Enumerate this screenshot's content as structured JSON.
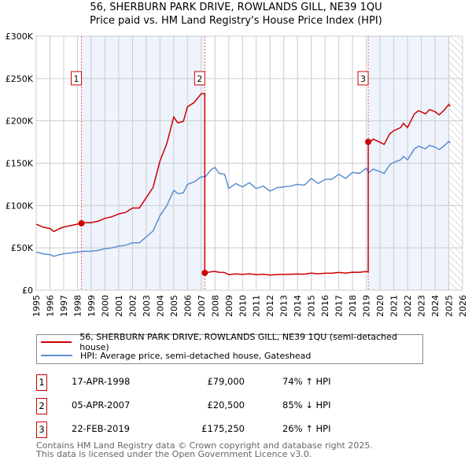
{
  "chart_data": {
    "type": "line",
    "title": "56, SHERBURN PARK DRIVE, ROWLANDS GILL, NE39 1QU",
    "subtitle": "Price paid vs. HM Land Registry's House Price Index (HPI)",
    "xlim": [
      1995,
      2026
    ],
    "ylim": [
      0,
      300000
    ],
    "x_ticks": [
      "1995",
      "1996",
      "1997",
      "1998",
      "1999",
      "2000",
      "2001",
      "2002",
      "2003",
      "2004",
      "2005",
      "2006",
      "2007",
      "2008",
      "2009",
      "2010",
      "2011",
      "2012",
      "2013",
      "2014",
      "2015",
      "2016",
      "2017",
      "2018",
      "2019",
      "2020",
      "2021",
      "2022",
      "2023",
      "2024",
      "2025",
      "2026"
    ],
    "y_ticks": [
      {
        "v": 0,
        "label": "£0"
      },
      {
        "v": 50000,
        "label": "£50K"
      },
      {
        "v": 100000,
        "label": "£100K"
      },
      {
        "v": 150000,
        "label": "£150K"
      },
      {
        "v": 200000,
        "label": "£200K"
      },
      {
        "v": 250000,
        "label": "£250K"
      },
      {
        "v": 300000,
        "label": "£300K"
      }
    ],
    "grid": true,
    "hpi_series": {
      "name": "HPI: Average price, semi-detached house, Gateshead",
      "color": "#5b8fd0",
      "points": [
        [
          1995.0,
          45000
        ],
        [
          1995.5,
          43000
        ],
        [
          1996.0,
          42000
        ],
        [
          1996.3,
          40000
        ],
        [
          1996.7,
          42000
        ],
        [
          1997.0,
          43000
        ],
        [
          1997.5,
          44000
        ],
        [
          1998.0,
          45000
        ],
        [
          1998.5,
          46000
        ],
        [
          1999.0,
          46000
        ],
        [
          1999.5,
          47000
        ],
        [
          2000.0,
          49000
        ],
        [
          2000.5,
          50000
        ],
        [
          2001.0,
          52000
        ],
        [
          2001.5,
          53000
        ],
        [
          2002.0,
          56000
        ],
        [
          2002.5,
          56000
        ],
        [
          2003.0,
          63000
        ],
        [
          2003.5,
          70000
        ],
        [
          2004.0,
          88000
        ],
        [
          2004.5,
          100000
        ],
        [
          2005.0,
          118000
        ],
        [
          2005.3,
          114000
        ],
        [
          2005.7,
          115000
        ],
        [
          2006.0,
          125000
        ],
        [
          2006.5,
          128000
        ],
        [
          2007.0,
          134000
        ],
        [
          2007.3,
          134000
        ],
        [
          2007.7,
          142000
        ],
        [
          2008.0,
          145000
        ],
        [
          2008.3,
          138000
        ],
        [
          2008.7,
          137000
        ],
        [
          2009.0,
          120000
        ],
        [
          2009.5,
          126000
        ],
        [
          2010.0,
          122000
        ],
        [
          2010.5,
          127000
        ],
        [
          2011.0,
          120000
        ],
        [
          2011.5,
          123000
        ],
        [
          2012.0,
          117000
        ],
        [
          2012.5,
          121000
        ],
        [
          2013.0,
          122000
        ],
        [
          2013.5,
          123000
        ],
        [
          2014.0,
          125000
        ],
        [
          2014.5,
          124000
        ],
        [
          2015.0,
          132000
        ],
        [
          2015.5,
          126000
        ],
        [
          2016.0,
          131000
        ],
        [
          2016.5,
          131000
        ],
        [
          2017.0,
          137000
        ],
        [
          2017.5,
          132000
        ],
        [
          2018.0,
          139000
        ],
        [
          2018.5,
          138000
        ],
        [
          2019.0,
          144000
        ],
        [
          2019.2,
          139000
        ],
        [
          2019.5,
          143000
        ],
        [
          2020.0,
          140000
        ],
        [
          2020.3,
          138000
        ],
        [
          2020.7,
          148000
        ],
        [
          2021.0,
          151000
        ],
        [
          2021.5,
          154000
        ],
        [
          2021.7,
          158000
        ],
        [
          2022.0,
          154000
        ],
        [
          2022.5,
          167000
        ],
        [
          2022.8,
          170000
        ],
        [
          2023.3,
          167000
        ],
        [
          2023.6,
          171000
        ],
        [
          2024.0,
          169000
        ],
        [
          2024.3,
          166000
        ],
        [
          2024.7,
          171000
        ],
        [
          2025.0,
          176000
        ],
        [
          2025.1,
          174000
        ]
      ]
    },
    "property_series": {
      "name": "56, SHERBURN PARK DRIVE, ROWLANDS GILL, NE39 1QU (semi-detached house)",
      "color": "#cc0000",
      "note": "HPI-indexed from each sale"
    },
    "sales": [
      {
        "label": "1",
        "x": 1998.29,
        "price": 79000,
        "date": "17-APR-1998",
        "price_text": "£79,000",
        "hpi_text": "74% ↑ HPI"
      },
      {
        "label": "2",
        "x": 2007.26,
        "price": 20500,
        "date": "05-APR-2007",
        "price_text": "£20,500",
        "hpi_text": "85% ↓ HPI"
      },
      {
        "label": "3",
        "x": 2019.14,
        "price": 175250,
        "date": "22-FEB-2019",
        "price_text": "£175,250",
        "hpi_text": "26% ↑ HPI"
      }
    ],
    "shaded_ranges": [
      [
        1998.29,
        2007.26
      ],
      [
        2019.14,
        2025.0
      ]
    ],
    "hatched_range": [
      2025.0,
      2026
    ],
    "legend_placement": "below"
  },
  "footer": {
    "line1": "Contains HM Land Registry data © Crown copyright and database right 2025.",
    "line2": "This data is licensed under the Open Government Licence v3.0."
  }
}
